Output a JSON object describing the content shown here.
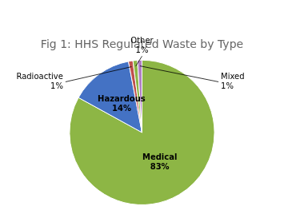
{
  "chart_data": {
    "type": "pie",
    "title": "Fig 1: HHS Regulated Waste by Type",
    "categories": [
      "Medical",
      "Hazardous",
      "Radioactive",
      "Other",
      "Mixed"
    ],
    "values": [
      83,
      14,
      1,
      1,
      1
    ],
    "value_labels": [
      "83%",
      "14%",
      "1%",
      "1%",
      "1%"
    ],
    "colors": [
      "#8db645",
      "#4472c4",
      "#c0504d",
      "#8db645",
      "#b07fc4"
    ],
    "data_labels": true
  }
}
